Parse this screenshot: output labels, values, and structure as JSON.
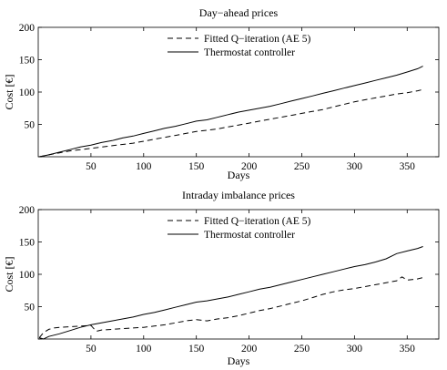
{
  "chart_data": [
    {
      "type": "line",
      "title": "Day−ahead prices",
      "xlabel": "Days",
      "ylabel": "Cost [€]",
      "xlim": [
        0,
        380
      ],
      "ylim": [
        0,
        200
      ],
      "xticks": [
        50,
        100,
        150,
        200,
        250,
        300,
        350
      ],
      "yticks": [
        0,
        50,
        100,
        150,
        200
      ],
      "tick_labels_y": [
        "50",
        "100",
        "150",
        "200"
      ],
      "grid": false,
      "legend_position": "top-right",
      "series": [
        {
          "name": "Fitted Q−iteration (AE 5)",
          "style": "dashed",
          "color": "#000000",
          "x": [
            1,
            10,
            20,
            30,
            40,
            50,
            60,
            70,
            80,
            90,
            100,
            110,
            120,
            130,
            140,
            150,
            160,
            170,
            180,
            190,
            200,
            210,
            220,
            230,
            240,
            250,
            260,
            270,
            280,
            290,
            300,
            310,
            320,
            330,
            340,
            350,
            360,
            365
          ],
          "y": [
            0,
            3,
            6,
            9,
            11,
            13,
            15,
            17,
            19,
            21,
            24,
            27,
            30,
            33,
            36,
            39,
            41,
            43,
            46,
            49,
            52,
            55,
            58,
            61,
            64,
            67,
            70,
            73,
            77,
            81,
            85,
            88,
            91,
            94,
            97,
            99,
            102,
            104
          ]
        },
        {
          "name": "Thermostat controller",
          "style": "solid",
          "color": "#000000",
          "x": [
            1,
            10,
            20,
            30,
            40,
            50,
            60,
            70,
            80,
            90,
            100,
            110,
            120,
            130,
            140,
            150,
            160,
            170,
            180,
            190,
            200,
            210,
            220,
            230,
            240,
            250,
            260,
            270,
            280,
            290,
            300,
            310,
            320,
            330,
            340,
            350,
            360,
            365
          ],
          "y": [
            0,
            3,
            7,
            11,
            15,
            18,
            22,
            25,
            29,
            32,
            36,
            40,
            44,
            47,
            51,
            55,
            57,
            61,
            65,
            69,
            72,
            75,
            78,
            82,
            86,
            90,
            94,
            98,
            102,
            106,
            110,
            114,
            118,
            122,
            126,
            131,
            136,
            140
          ]
        }
      ]
    },
    {
      "type": "line",
      "title": "Intraday imbalance prices",
      "xlabel": "Days",
      "ylabel": "Cost [€]",
      "xlim": [
        0,
        380
      ],
      "ylim": [
        0,
        200
      ],
      "xticks": [
        50,
        100,
        150,
        200,
        250,
        300,
        350
      ],
      "yticks": [
        0,
        50,
        100,
        150,
        200
      ],
      "tick_labels_y": [
        "50",
        "100",
        "150",
        "200"
      ],
      "grid": false,
      "legend_position": "top-right",
      "series": [
        {
          "name": "Fitted Q−iteration (AE 5)",
          "style": "dashed",
          "color": "#000000",
          "x": [
            1,
            5,
            10,
            15,
            20,
            30,
            40,
            50,
            55,
            60,
            70,
            80,
            90,
            100,
            110,
            120,
            130,
            140,
            150,
            160,
            170,
            180,
            190,
            200,
            210,
            220,
            230,
            240,
            250,
            260,
            270,
            280,
            290,
            300,
            310,
            320,
            330,
            340,
            345,
            350,
            360,
            365
          ],
          "y": [
            2,
            10,
            15,
            17,
            18,
            19,
            20,
            21,
            12,
            14,
            15,
            16,
            17,
            18,
            20,
            22,
            25,
            28,
            30,
            28,
            31,
            33,
            36,
            40,
            44,
            47,
            51,
            55,
            59,
            64,
            69,
            73,
            76,
            78,
            81,
            84,
            87,
            90,
            96,
            91,
            93,
            95
          ]
        },
        {
          "name": "Thermostat controller",
          "style": "solid",
          "color": "#000000",
          "x": [
            1,
            5,
            10,
            20,
            30,
            40,
            50,
            60,
            70,
            80,
            90,
            100,
            110,
            120,
            130,
            140,
            150,
            160,
            170,
            180,
            190,
            200,
            210,
            220,
            230,
            240,
            250,
            260,
            270,
            280,
            290,
            300,
            310,
            320,
            330,
            340,
            350,
            360,
            365
          ],
          "y": [
            2,
            0,
            4,
            8,
            13,
            18,
            22,
            25,
            28,
            31,
            34,
            38,
            41,
            45,
            49,
            53,
            57,
            59,
            62,
            65,
            69,
            73,
            77,
            80,
            84,
            88,
            92,
            96,
            100,
            104,
            108,
            112,
            115,
            119,
            124,
            132,
            136,
            140,
            143
          ]
        }
      ]
    }
  ]
}
